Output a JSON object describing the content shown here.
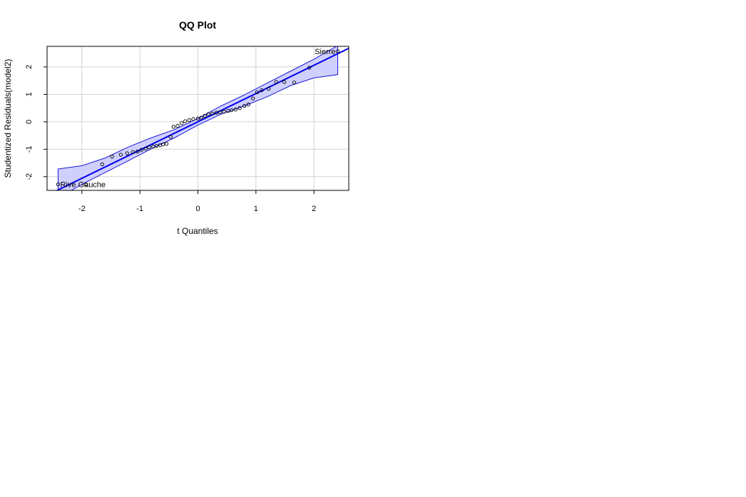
{
  "chart_data": {
    "type": "scatter",
    "title": "QQ Plot",
    "xlabel": "t Quantiles",
    "ylabel": "Studentized Residuals(model2)",
    "xlim": [
      -2.6,
      2.6
    ],
    "ylim": [
      -2.5,
      2.75
    ],
    "xticks": [
      -2,
      -1,
      0,
      1,
      2
    ],
    "xtick_labels": [
      "-2",
      "-1",
      "0",
      "1",
      "2"
    ],
    "yticks": [
      -2,
      -1,
      0,
      1,
      2
    ],
    "ytick_labels": [
      "-2",
      "-1",
      "0",
      "1",
      "2"
    ],
    "grid": true,
    "colors": {
      "line": "#0000ee",
      "band_fill": "#c8c8ff",
      "band_edge": "#1b1bd6",
      "grid": "#d3d3d3"
    },
    "points": [
      {
        "x": -2.41,
        "y": -2.28
      },
      {
        "x": -1.93,
        "y": -2.28
      },
      {
        "x": -1.65,
        "y": -1.55
      },
      {
        "x": -1.48,
        "y": -1.27
      },
      {
        "x": -1.33,
        "y": -1.2
      },
      {
        "x": -1.22,
        "y": -1.15
      },
      {
        "x": -1.12,
        "y": -1.1
      },
      {
        "x": -1.04,
        "y": -1.08
      },
      {
        "x": -0.97,
        "y": -1.02
      },
      {
        "x": -0.9,
        "y": -0.98
      },
      {
        "x": -0.84,
        "y": -0.93
      },
      {
        "x": -0.77,
        "y": -0.9
      },
      {
        "x": -0.71,
        "y": -0.88
      },
      {
        "x": -0.65,
        "y": -0.85
      },
      {
        "x": -0.6,
        "y": -0.82
      },
      {
        "x": -0.54,
        "y": -0.8
      },
      {
        "x": -0.47,
        "y": -0.55
      },
      {
        "x": -0.42,
        "y": -0.18
      },
      {
        "x": -0.35,
        "y": -0.15
      },
      {
        "x": -0.28,
        "y": -0.05
      },
      {
        "x": -0.22,
        "y": 0.02
      },
      {
        "x": -0.15,
        "y": 0.06
      },
      {
        "x": -0.08,
        "y": 0.1
      },
      {
        "x": 0.0,
        "y": 0.12
      },
      {
        "x": 0.06,
        "y": 0.15
      },
      {
        "x": 0.12,
        "y": 0.22
      },
      {
        "x": 0.18,
        "y": 0.28
      },
      {
        "x": 0.25,
        "y": 0.3
      },
      {
        "x": 0.32,
        "y": 0.33
      },
      {
        "x": 0.38,
        "y": 0.35
      },
      {
        "x": 0.45,
        "y": 0.37
      },
      {
        "x": 0.52,
        "y": 0.4
      },
      {
        "x": 0.58,
        "y": 0.42
      },
      {
        "x": 0.65,
        "y": 0.45
      },
      {
        "x": 0.72,
        "y": 0.5
      },
      {
        "x": 0.8,
        "y": 0.58
      },
      {
        "x": 0.87,
        "y": 0.63
      },
      {
        "x": 0.95,
        "y": 0.85
      },
      {
        "x": 1.02,
        "y": 1.08
      },
      {
        "x": 1.1,
        "y": 1.15
      },
      {
        "x": 1.22,
        "y": 1.2
      },
      {
        "x": 1.35,
        "y": 1.45
      },
      {
        "x": 1.49,
        "y": 1.45
      },
      {
        "x": 1.66,
        "y": 1.43
      },
      {
        "x": 1.92,
        "y": 1.97
      },
      {
        "x": 2.41,
        "y": 2.57
      }
    ],
    "labels": [
      {
        "text": "Sierre",
        "x": 2.41,
        "y": 2.57,
        "anchor": "end"
      },
      {
        "text": "Rive Gauche",
        "x": -2.41,
        "y": -2.28,
        "anchor": "start"
      }
    ],
    "reference_line": {
      "intercept": 0.0,
      "slope": 1.03
    },
    "confidence_band": {
      "x": [
        -2.41,
        -2.0,
        -1.6,
        -1.2,
        -0.8,
        -0.4,
        0.0,
        0.4,
        0.8,
        1.2,
        1.6,
        2.0,
        2.41
      ],
      "upper": [
        -1.72,
        -1.6,
        -1.32,
        -0.92,
        -0.58,
        -0.28,
        0.12,
        0.58,
        0.98,
        1.42,
        1.85,
        2.28,
        2.78
      ],
      "lower": [
        -2.78,
        -2.28,
        -1.85,
        -1.42,
        -0.98,
        -0.58,
        -0.12,
        0.28,
        0.58,
        0.92,
        1.32,
        1.6,
        1.72
      ]
    }
  }
}
